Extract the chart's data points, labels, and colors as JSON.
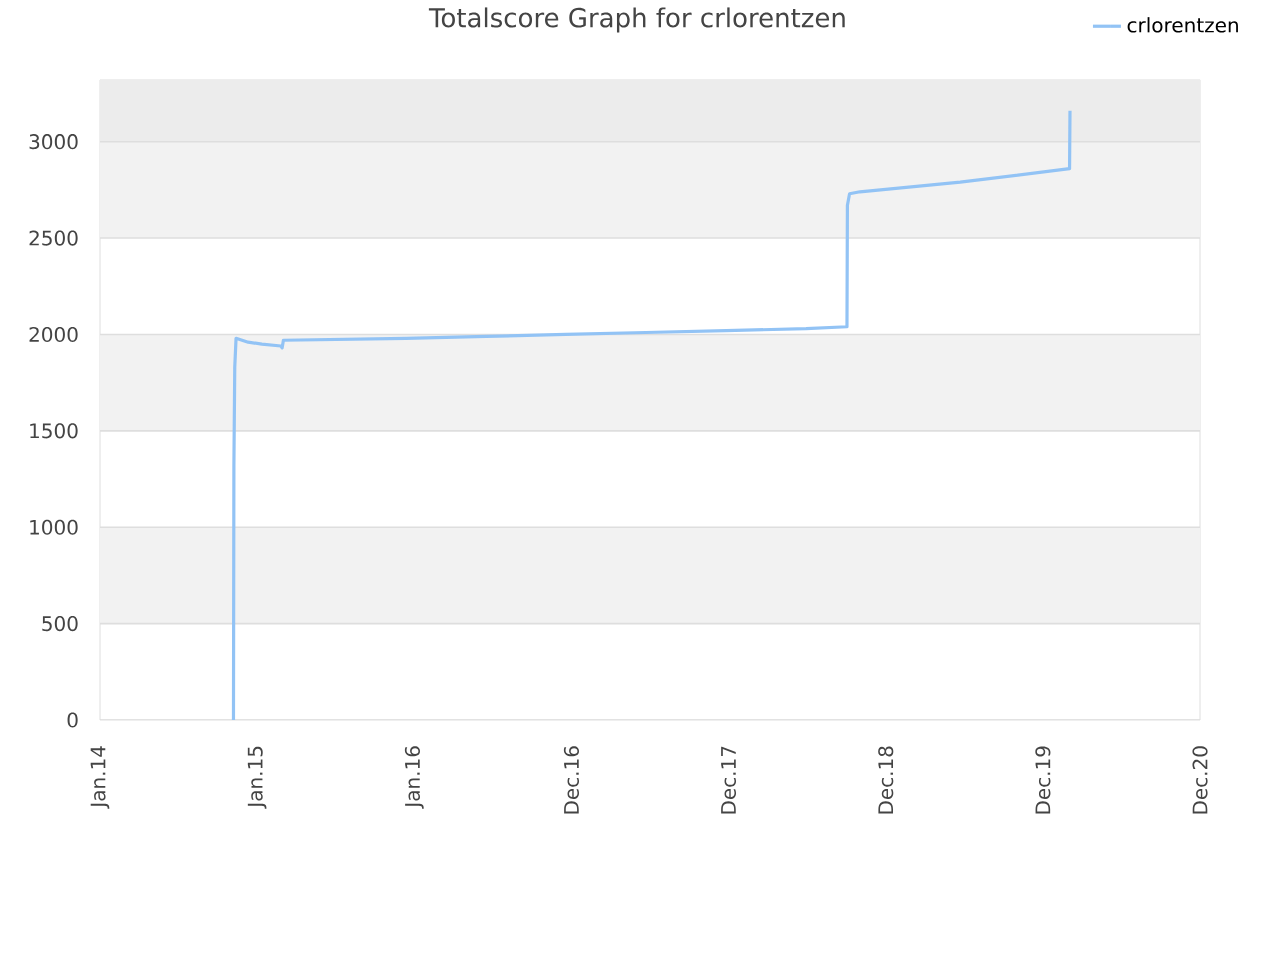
{
  "chart_data": {
    "type": "line",
    "title": "Totalscore Graph for crlorentzen",
    "x": [
      "2014-11-07",
      "2014-11-08",
      "2014-11-10",
      "2014-11-13",
      "2014-12-11",
      "2015-01-12",
      "2015-02-25",
      "2015-02-28",
      "2015-03-03",
      "2015-12-13",
      "2016-06-16",
      "2016-12-18",
      "2017-06-22",
      "2017-12-25",
      "2018-06-29",
      "2018-10-02",
      "2018-10-03",
      "2018-10-08",
      "2018-11-01",
      "2019-06-22",
      "2020-03-02",
      "2020-03-03"
    ],
    "series": [
      {
        "name": "crlorentzen",
        "color": "#92c3f5",
        "values": [
          0,
          1320,
          1830,
          1980,
          1960,
          1950,
          1940,
          1930,
          1970,
          1980,
          1990,
          2000,
          2010,
          2020,
          2030,
          2040,
          2670,
          2730,
          2740,
          2790,
          2860,
          3160
        ]
      }
    ],
    "xlim": [
      "2014-01-01",
      "2020-12-30"
    ],
    "xticks": [
      {
        "value": "2014-01-01",
        "label": "Jan.14"
      },
      {
        "value": "2015-01-01",
        "label": "Jan.15"
      },
      {
        "value": "2016-01-01",
        "label": "Jan.16"
      },
      {
        "value": "2016-12-31",
        "label": "Dec.16"
      },
      {
        "value": "2017-12-31",
        "label": "Dec.17"
      },
      {
        "value": "2018-12-31",
        "label": "Dec.18"
      },
      {
        "value": "2019-12-31",
        "label": "Dec.19"
      },
      {
        "value": "2020-12-30",
        "label": "Dec.20"
      }
    ],
    "ylim": [
      0,
      3320
    ],
    "yticks": [
      0,
      500,
      1000,
      1500,
      2000,
      2500,
      3000
    ],
    "grid": "y",
    "legend": "top right",
    "marker": "none",
    "line_style": "solid",
    "bands": [
      {
        "axis": "y",
        "from": 500,
        "to": 1000,
        "color": "#f2f2f2"
      },
      {
        "axis": "y",
        "from": 1500,
        "to": 2000,
        "color": "#f2f2f2"
      },
      {
        "axis": "y",
        "from": 2500,
        "to": 3000,
        "color": "#f2f2f2"
      },
      {
        "axis": "y",
        "from": 3000,
        "to": 3320,
        "color": "#ececec"
      }
    ]
  }
}
